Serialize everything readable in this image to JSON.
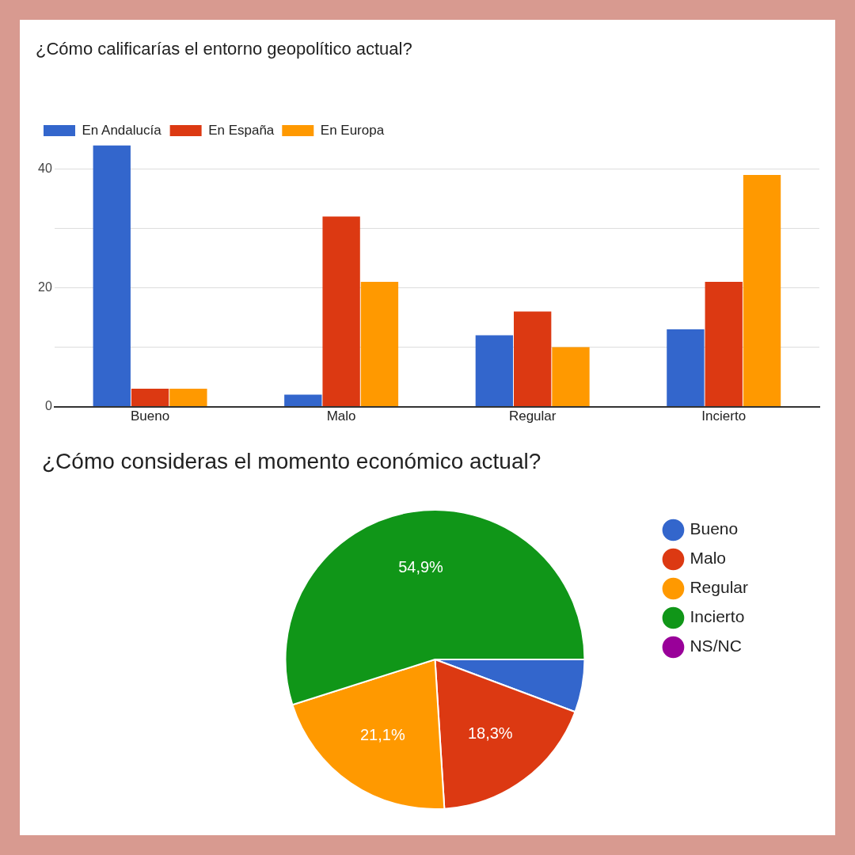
{
  "chart_data": [
    {
      "type": "bar",
      "title": "¿Cómo calificarías el entorno geopolítico actual?",
      "categories": [
        "Bueno",
        "Malo",
        "Regular",
        "Incierto"
      ],
      "series": [
        {
          "name": "En Andalucía",
          "color": "#3366cc",
          "values": [
            44,
            2,
            12,
            13
          ]
        },
        {
          "name": "En España",
          "color": "#dc3912",
          "values": [
            3,
            32,
            16,
            21
          ]
        },
        {
          "name": "En Europa",
          "color": "#ff9900",
          "values": [
            3,
            21,
            10,
            39
          ]
        }
      ],
      "ylim": [
        0,
        44
      ],
      "yticks": [
        0,
        {
          "value": 10,
          "label": null
        },
        20,
        {
          "value": 30,
          "label": null
        },
        40
      ],
      "grid": "y",
      "legend": "top left"
    },
    {
      "type": "pie",
      "title": "¿Cómo consideras el momento económico actual?",
      "categories": [
        "Bueno",
        "Malo",
        "Regular",
        "Incierto",
        "NS/NC"
      ],
      "values": [
        5.7,
        18.3,
        21.1,
        54.9,
        0
      ],
      "colors": [
        "#3366cc",
        "#dc3912",
        "#ff9900",
        "#109618",
        "#990099"
      ],
      "value_labels": [
        null,
        "18,3%",
        "21,1%",
        "54,9%",
        null
      ],
      "legend": "right"
    }
  ]
}
